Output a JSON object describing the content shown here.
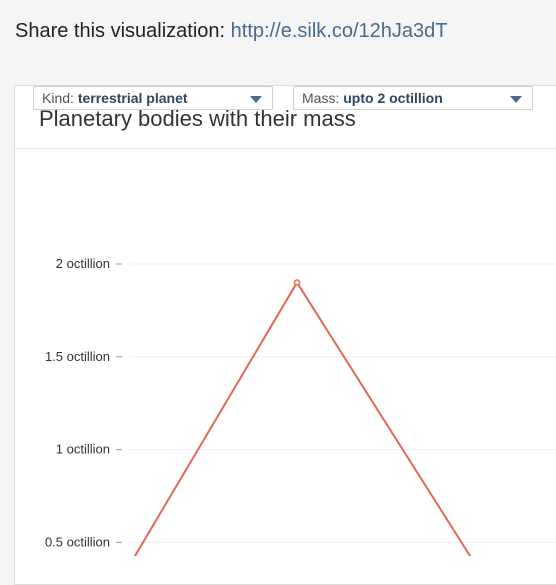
{
  "share": {
    "label": "Share this visualization:",
    "url": "http://e.silk.co/12hJa3dT"
  },
  "card": {
    "title": "Planetary bodies with their mass"
  },
  "filters": [
    {
      "label": "Kind:",
      "value": "terrestrial planet"
    },
    {
      "label": "Mass:",
      "value": "upto 2 octillion"
    }
  ],
  "chart_data": {
    "type": "line",
    "title": "Planetary bodies with their mass",
    "xlabel": "",
    "ylabel": "",
    "y_ticks": [
      {
        "value": 0.5,
        "label": "0.5 octillion"
      },
      {
        "value": 1,
        "label": "1 octillion"
      },
      {
        "value": 1.5,
        "label": "1.5 octillion"
      },
      {
        "value": 2,
        "label": "2 octillion"
      }
    ],
    "ylim": [
      0,
      2
    ],
    "grid": true,
    "color": "#e06a55",
    "series": [
      {
        "points": [
          {
            "x": 0,
            "y": 0.2
          },
          {
            "x": 1,
            "y": 1.9
          },
          {
            "x": 2,
            "y": 0.3
          }
        ],
        "markers": [
          1
        ]
      }
    ]
  }
}
